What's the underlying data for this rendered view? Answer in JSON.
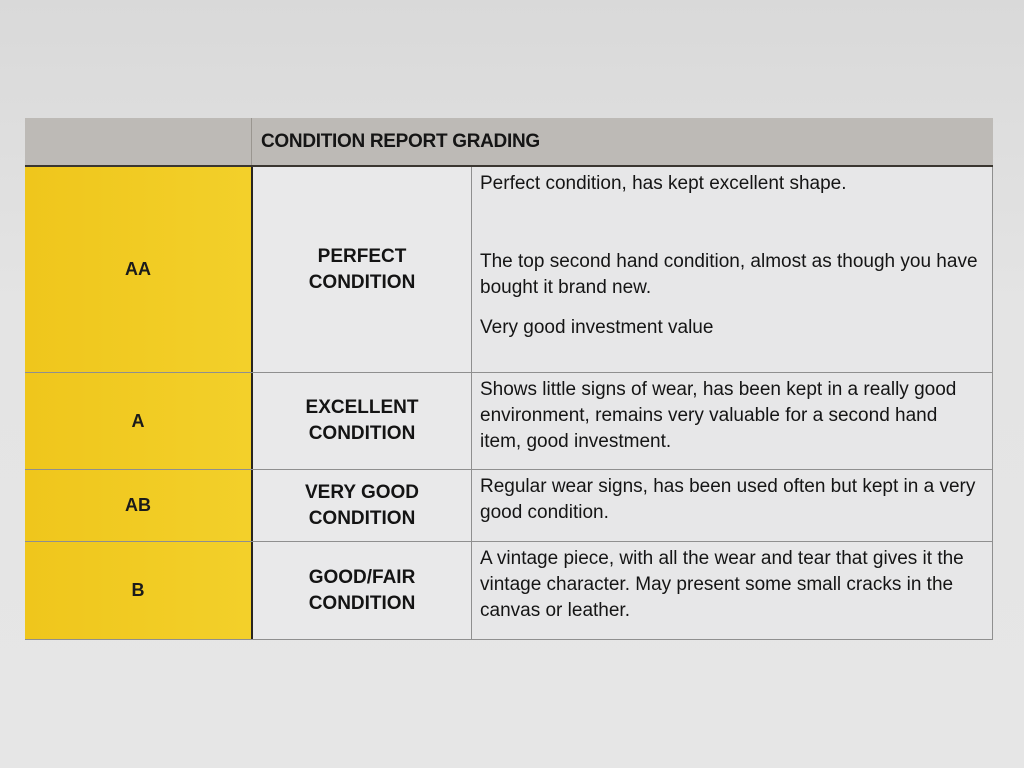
{
  "table": {
    "title": "CONDITION REPORT GRADING",
    "rows": [
      {
        "grade": "AA",
        "condition": "PERFECT CONDITION",
        "descriptions": [
          "Perfect condition, has kept excellent shape.",
          "The top second hand condition, almost as though you have bought it brand new.",
          "Very good investment value"
        ]
      },
      {
        "grade": "A",
        "condition": "EXCELLENT CONDITION",
        "descriptions": [
          "Shows little signs of wear, has been kept in a really good environment, remains very valuable for a second hand item, good investment."
        ]
      },
      {
        "grade": "AB",
        "condition": "VERY GOOD CONDITION",
        "descriptions": [
          "Regular wear signs, has been used often but kept in a very good condition."
        ]
      },
      {
        "grade": "B",
        "condition": "GOOD/FAIR CONDITION",
        "descriptions": [
          "A vintage piece, with all the wear and tear that gives it the vintage character. May present some small cracks in the canvas or leather."
        ]
      }
    ]
  },
  "colors": {
    "grade_column": "#f0c81c",
    "header": "#bdbab6"
  }
}
